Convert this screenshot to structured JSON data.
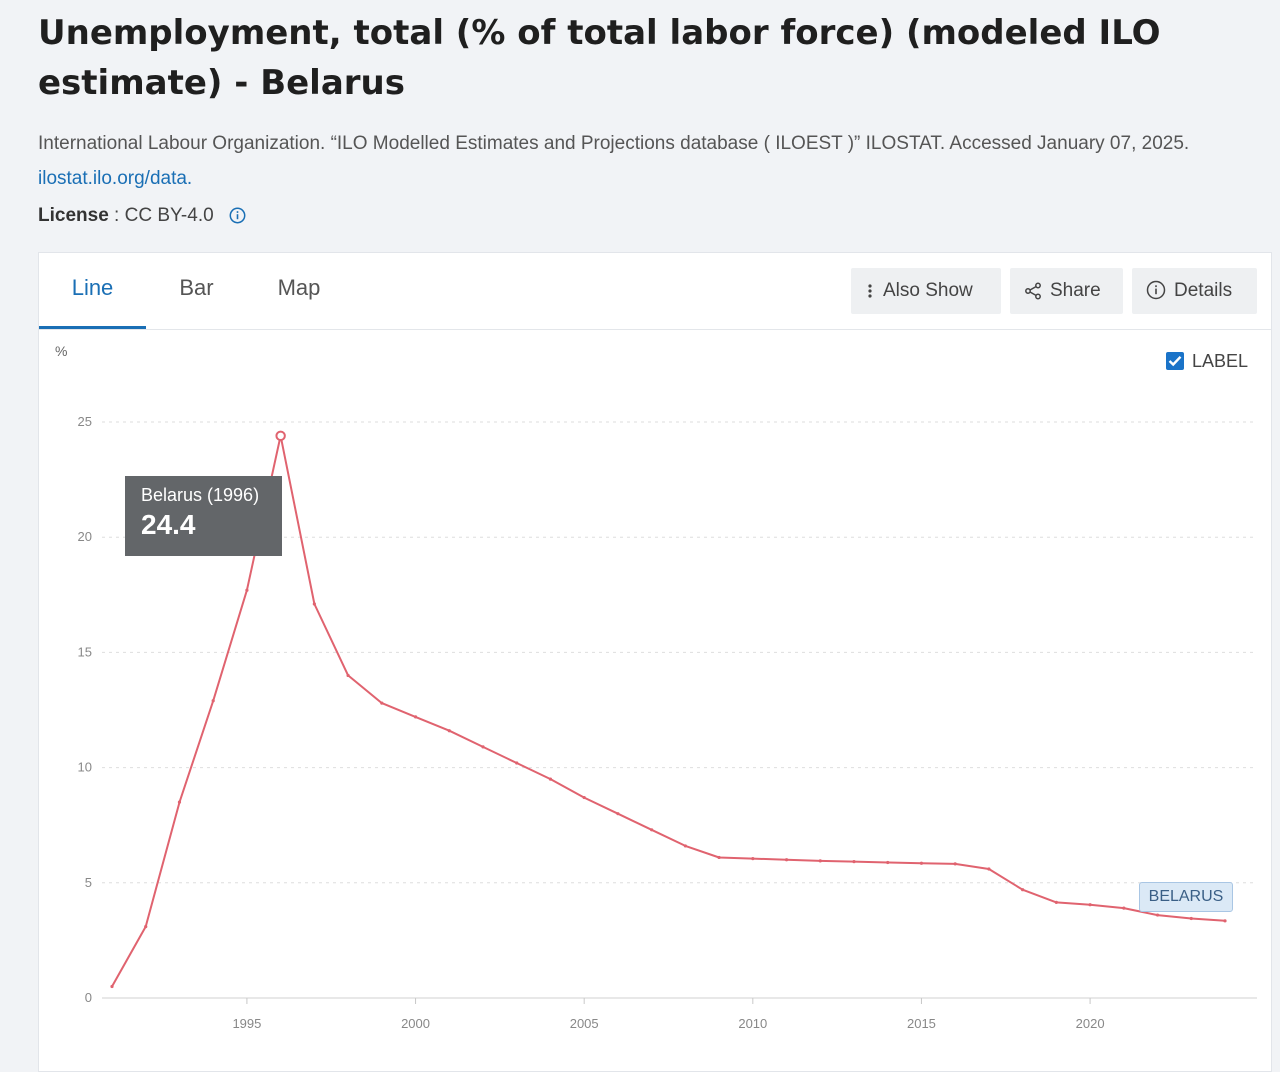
{
  "header": {
    "title": "Unemployment, total (% of total labor force) (modeled ILO estimate) - Belarus",
    "citation_text": "International Labour Organization. “ILO Modelled Estimates and Projections database ( ILOEST )” ILOSTAT. Accessed January 07, 2025.",
    "citation_link": "ilostat.ilo.org/data.",
    "license_label": "License",
    "license_sep": " : ",
    "license_value": "CC BY-4.0"
  },
  "tabs": [
    {
      "label": "Line",
      "active": true
    },
    {
      "label": "Bar",
      "active": false
    },
    {
      "label": "Map",
      "active": false
    }
  ],
  "toolbar": {
    "also_show": "Also Show",
    "share": "Share",
    "details": "Details"
  },
  "label_toggle": {
    "label": "LABEL",
    "checked": true
  },
  "tooltip": {
    "title": "Belarus (1996)",
    "value": "24.4"
  },
  "series_label": "BELARUS",
  "colors": {
    "line": "#e0636f",
    "accent": "#1a6fb5",
    "grid": "#dddddd"
  },
  "chart_data": {
    "type": "line",
    "ylabel": "%",
    "ylim": [
      0,
      25
    ],
    "yticks": [
      0,
      5,
      10,
      15,
      20,
      25
    ],
    "xlim": [
      1991,
      2024
    ],
    "xticks": [
      1995,
      2000,
      2005,
      2010,
      2015,
      2020
    ],
    "grid": true,
    "series": [
      {
        "name": "BELARUS",
        "x": [
          1991,
          1992,
          1993,
          1994,
          1995,
          1996,
          1997,
          1998,
          1999,
          2000,
          2001,
          2002,
          2003,
          2004,
          2005,
          2006,
          2007,
          2008,
          2009,
          2010,
          2011,
          2012,
          2013,
          2014,
          2015,
          2016,
          2017,
          2018,
          2019,
          2020,
          2021,
          2022,
          2023,
          2024
        ],
        "values": [
          0.5,
          3.1,
          8.5,
          12.9,
          17.7,
          24.4,
          17.1,
          14.0,
          12.8,
          12.2,
          11.6,
          10.9,
          10.2,
          9.5,
          8.7,
          8.0,
          7.3,
          6.6,
          6.1,
          6.05,
          6.0,
          5.95,
          5.92,
          5.88,
          5.85,
          5.82,
          5.6,
          4.7,
          4.15,
          4.05,
          3.9,
          3.6,
          3.45,
          3.35
        ]
      }
    ],
    "highlight": {
      "x": 1996,
      "value": 24.4
    }
  }
}
